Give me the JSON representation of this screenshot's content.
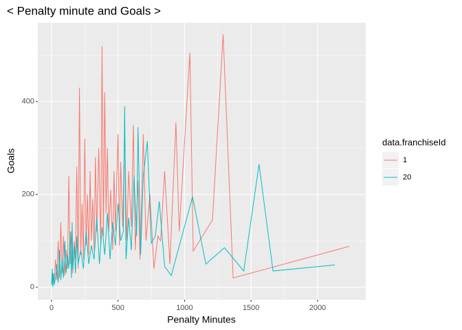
{
  "chart_data": {
    "type": "line",
    "title": "< Penalty minute and Goals >",
    "x_label": "Penalty Minutes",
    "y_label": "Goals",
    "legend_title": "data.franchiseId",
    "legend": "right",
    "grid": true,
    "xlim": [
      -103,
      2362
    ],
    "ylim": [
      -27,
      570
    ],
    "xticks": [
      0,
      500,
      1000,
      1500,
      2000
    ],
    "yticks": [
      0,
      200,
      400
    ],
    "series": [
      {
        "name": "1",
        "color": "#F8766D",
        "x": [
          0,
          10,
          20,
          30,
          40,
          50,
          60,
          70,
          80,
          90,
          100,
          110,
          120,
          130,
          140,
          150,
          160,
          170,
          180,
          190,
          200,
          210,
          220,
          230,
          240,
          250,
          260,
          270,
          280,
          290,
          300,
          310,
          320,
          330,
          340,
          355,
          370,
          380,
          390,
          400,
          410,
          420,
          430,
          445,
          460,
          470,
          480,
          500,
          510,
          520,
          535,
          550,
          565,
          580,
          600,
          615,
          630,
          650,
          665,
          690,
          710,
          740,
          770,
          800,
          820,
          850,
          890,
          935,
          960,
          1040,
          1065,
          1210,
          1290,
          1365,
          2237
        ],
        "values": [
          5,
          30,
          10,
          60,
          15,
          100,
          20,
          140,
          30,
          110,
          25,
          80,
          40,
          240,
          50,
          120,
          30,
          100,
          60,
          260,
          40,
          430,
          70,
          180,
          60,
          320,
          90,
          200,
          70,
          250,
          100,
          190,
          80,
          280,
          120,
          300,
          90,
          520,
          110,
          420,
          160,
          300,
          120,
          210,
          80,
          250,
          120,
          330,
          90,
          270,
          130,
          340,
          100,
          250,
          130,
          350,
          80,
          230,
          60,
          330,
          100,
          200,
          40,
          110,
          100,
          250,
          50,
          355,
          120,
          505,
          78,
          145,
          545,
          20,
          88
        ]
      },
      {
        "name": "20",
        "color": "#00BFC4",
        "x": [
          0,
          5,
          10,
          15,
          20,
          30,
          40,
          50,
          60,
          70,
          80,
          90,
          100,
          110,
          120,
          130,
          140,
          150,
          155,
          160,
          170,
          180,
          190,
          200,
          220,
          240,
          260,
          280,
          300,
          320,
          340,
          360,
          380,
          400,
          420,
          440,
          460,
          480,
          500,
          520,
          540,
          550,
          560,
          580,
          600,
          620,
          640,
          650,
          670,
          690,
          720,
          750,
          780,
          810,
          850,
          900,
          1060,
          1160,
          1300,
          1445,
          1560,
          1665,
          2130
        ],
        "values": [
          5,
          40,
          0,
          30,
          5,
          20,
          50,
          10,
          80,
          15,
          60,
          20,
          100,
          30,
          70,
          40,
          120,
          20,
          140,
          40,
          90,
          30,
          110,
          50,
          80,
          40,
          120,
          50,
          90,
          60,
          150,
          50,
          130,
          70,
          160,
          60,
          140,
          90,
          180,
          100,
          120,
          390,
          60,
          150,
          80,
          240,
          110,
          345,
          70,
          240,
          315,
          95,
          110,
          185,
          45,
          25,
          195,
          50,
          85,
          35,
          265,
          35,
          48
        ]
      }
    ]
  }
}
